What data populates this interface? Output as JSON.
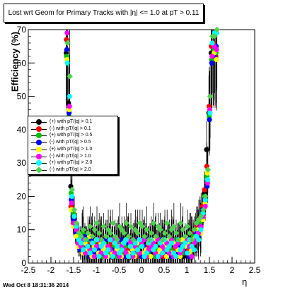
{
  "chart_data": {
    "type": "scatter",
    "title": "Lost wrt Geom for Primary Tracks with |η| <= 1.0 at pT > 0.11",
    "xlabel": "η",
    "ylabel": "Efficiency (%)",
    "xlim": [
      -2.5,
      2.5
    ],
    "ylim": [
      0,
      70
    ],
    "x_ticks": [
      -2.5,
      -2,
      -1.5,
      -1,
      -0.5,
      0,
      0.5,
      1,
      1.5,
      2,
      2.5
    ],
    "y_ticks": [
      0,
      10,
      20,
      30,
      40,
      50,
      60,
      70
    ],
    "grid": false,
    "legend_position": "middle-left",
    "series": [
      {
        "name": "(+) with pT/|q| > 0.1",
        "color": "#000000",
        "marker": "circle"
      },
      {
        "name": "(-) with pT/|q| > 0.1",
        "color": "#ff0000",
        "marker": "circle"
      },
      {
        "name": "(+) with pT/|q| > 0.5",
        "color": "#00c000",
        "marker": "circle"
      },
      {
        "name": "(-) with pT/|q| > 0.5",
        "color": "#0000ff",
        "marker": "circle"
      },
      {
        "name": "(+) with pT/|q| > 1.0",
        "color": "#ffff00",
        "marker": "circle"
      },
      {
        "name": "(-) with pT/|q| > 1.0",
        "color": "#ff00ff",
        "marker": "circle"
      },
      {
        "name": "(+) with pT/|q| > 2.0",
        "color": "#00ffff",
        "marker": "circle"
      },
      {
        "name": "(-) with pT/|q| > 2.0",
        "color": "#50d050",
        "marker": "diamond"
      }
    ],
    "x": [
      -1.65,
      -1.6,
      -1.55,
      -1.5,
      -1.45,
      -1.4,
      -1.35,
      -1.3,
      -1.25,
      -1.2,
      -1.15,
      -1.1,
      -1.05,
      -1.0,
      -0.95,
      -0.9,
      -0.85,
      -0.8,
      -0.75,
      -0.7,
      -0.65,
      -0.6,
      -0.55,
      -0.5,
      -0.45,
      -0.4,
      -0.35,
      -0.3,
      -0.25,
      -0.2,
      -0.15,
      -0.1,
      -0.05,
      0.0,
      0.05,
      0.1,
      0.15,
      0.2,
      0.25,
      0.3,
      0.35,
      0.4,
      0.45,
      0.5,
      0.55,
      0.6,
      0.65,
      0.7,
      0.75,
      0.8,
      0.85,
      0.9,
      0.95,
      1.0,
      1.05,
      1.1,
      1.15,
      1.2,
      1.25,
      1.3,
      1.35,
      1.4,
      1.45,
      1.5,
      1.55,
      1.6,
      1.65
    ],
    "values": [
      [
        63,
        48,
        23,
        14,
        10,
        7,
        5,
        8,
        4,
        6,
        3,
        5,
        7,
        4,
        6,
        2,
        5,
        3,
        7,
        4,
        5,
        2,
        6,
        4,
        3,
        7,
        5,
        2,
        4,
        6,
        3,
        5,
        4,
        3,
        6,
        2,
        5,
        7,
        3,
        4,
        6,
        5,
        2,
        4,
        6,
        3,
        5,
        7,
        4,
        3,
        6,
        5,
        2,
        4,
        6,
        8,
        5,
        7,
        10,
        12,
        14,
        21,
        34,
        45,
        63,
        63,
        63
      ],
      [
        67,
        42,
        17,
        12,
        9,
        6,
        8,
        4,
        7,
        3,
        6,
        4,
        2,
        6,
        3,
        5,
        7,
        4,
        2,
        5,
        6,
        3,
        4,
        7,
        5,
        2,
        6,
        4,
        3,
        5,
        7,
        4,
        2,
        6,
        3,
        5,
        4,
        2,
        7,
        5,
        3,
        6,
        4,
        2,
        5,
        7,
        3,
        4,
        6,
        5,
        2,
        3,
        7,
        5,
        4,
        6,
        9,
        8,
        11,
        13,
        17,
        22,
        29,
        47,
        65,
        66,
        62
      ],
      [
        62,
        44,
        21,
        15,
        11,
        8,
        6,
        9,
        5,
        3,
        7,
        4,
        6,
        3,
        5,
        7,
        2,
        6,
        4,
        3,
        7,
        5,
        2,
        4,
        6,
        3,
        5,
        7,
        2,
        4,
        6,
        3,
        5,
        2,
        7,
        4,
        3,
        6,
        5,
        2,
        4,
        7,
        3,
        5,
        6,
        2,
        4,
        3,
        7,
        5,
        4,
        6,
        3,
        5,
        7,
        6,
        8,
        10,
        9,
        12,
        15,
        20,
        26,
        44,
        61,
        64,
        63
      ],
      [
        64,
        45,
        19,
        13,
        9,
        7,
        4,
        6,
        8,
        5,
        2,
        7,
        3,
        5,
        4,
        6,
        3,
        7,
        5,
        2,
        4,
        6,
        3,
        5,
        7,
        4,
        2,
        6,
        5,
        3,
        4,
        7,
        6,
        2,
        5,
        3,
        7,
        4,
        6,
        5,
        2,
        3,
        7,
        6,
        4,
        5,
        2,
        6,
        3,
        7,
        5,
        4,
        6,
        3,
        2,
        7,
        6,
        9,
        8,
        11,
        16,
        19,
        23,
        43,
        60,
        62,
        65
      ],
      [
        61,
        46,
        16,
        11,
        8,
        5,
        7,
        3,
        6,
        4,
        8,
        2,
        5,
        7,
        3,
        6,
        4,
        5,
        2,
        7,
        3,
        6,
        4,
        5,
        2,
        6,
        7,
        3,
        5,
        4,
        2,
        6,
        7,
        5,
        3,
        4,
        6,
        2,
        5,
        7,
        3,
        4,
        6,
        5,
        2,
        7,
        3,
        6,
        5,
        4,
        2,
        7,
        5,
        6,
        3,
        4,
        7,
        8,
        10,
        9,
        13,
        18,
        27,
        46,
        62,
        63,
        61
      ],
      [
        69,
        47,
        18,
        12,
        10,
        6,
        5,
        7,
        3,
        5,
        4,
        6,
        2,
        5,
        7,
        3,
        6,
        2,
        5,
        4,
        7,
        3,
        6,
        2,
        5,
        4,
        3,
        7,
        6,
        2,
        5,
        4,
        3,
        6,
        7,
        2,
        4,
        5,
        6,
        3,
        7,
        2,
        5,
        4,
        6,
        3,
        7,
        2,
        5,
        6,
        3,
        4,
        6,
        7,
        5,
        2,
        6,
        7,
        9,
        11,
        14,
        17,
        24,
        46,
        62,
        65,
        64
      ],
      [
        60,
        50,
        20,
        14,
        11,
        7,
        6,
        4,
        7,
        5,
        3,
        6,
        4,
        7,
        2,
        5,
        6,
        3,
        4,
        7,
        2,
        6,
        5,
        3,
        4,
        6,
        7,
        2,
        5,
        3,
        6,
        4,
        7,
        5,
        2,
        3,
        6,
        7,
        4,
        5,
        2,
        6,
        3,
        7,
        4,
        5,
        6,
        3,
        2,
        7,
        4,
        5,
        6,
        3,
        7,
        5,
        4,
        8,
        7,
        10,
        15,
        19,
        25,
        45,
        66,
        69,
        69
      ],
      [
        66,
        56,
        22,
        16,
        12,
        9,
        8,
        10,
        7,
        9,
        11,
        8,
        10,
        12,
        9,
        7,
        11,
        8,
        10,
        9,
        12,
        8,
        7,
        11,
        10,
        9,
        12,
        8,
        11,
        7,
        10,
        9,
        12,
        11,
        8,
        10,
        7,
        9,
        12,
        8,
        11,
        10,
        7,
        9,
        12,
        8,
        10,
        11,
        9,
        7,
        12,
        10,
        8,
        11,
        9,
        7,
        10,
        12,
        13,
        14,
        16,
        20,
        28,
        50,
        68,
        68,
        70
      ]
    ]
  },
  "footer": {
    "timestamp": "Wed Oct  8 18:31:36 2014"
  }
}
